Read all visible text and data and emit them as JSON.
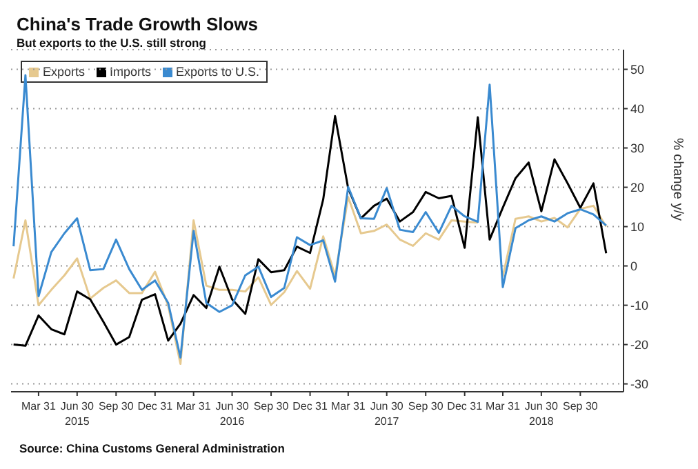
{
  "chart_data": {
    "type": "line",
    "title": "China's Trade Growth Slows",
    "subtitle": "But exports to the U.S. still strong",
    "ylabel": "% change y/y",
    "annotations": [
      "Source: China Customs General Administration"
    ],
    "x": [
      "2015-01-31",
      "2015-02-28",
      "2015-03-31",
      "2015-04-30",
      "2015-05-31",
      "2015-06-30",
      "2015-07-31",
      "2015-08-31",
      "2015-09-30",
      "2015-10-31",
      "2015-11-30",
      "2015-12-31",
      "2016-01-31",
      "2016-02-29",
      "2016-03-31",
      "2016-04-30",
      "2016-05-31",
      "2016-06-30",
      "2016-07-31",
      "2016-08-31",
      "2016-09-30",
      "2016-10-31",
      "2016-11-30",
      "2016-12-31",
      "2017-01-31",
      "2017-02-28",
      "2017-03-31",
      "2017-04-30",
      "2017-05-31",
      "2017-06-30",
      "2017-07-31",
      "2017-08-31",
      "2017-09-30",
      "2017-10-31",
      "2017-11-30",
      "2017-12-31",
      "2018-01-31",
      "2018-02-28",
      "2018-03-31",
      "2018-04-30",
      "2018-05-31",
      "2018-06-30",
      "2018-07-31",
      "2018-08-31",
      "2018-09-30",
      "2018-10-31",
      "2018-11-30"
    ],
    "series": [
      {
        "name": "Exports",
        "color": "#e6c98f",
        "values": [
          -3.2,
          11.6,
          -10,
          -6.1,
          -2.4,
          1.9,
          -8.3,
          -5.6,
          -3.7,
          -6.9,
          -6.9,
          -1.5,
          -10.1,
          -24.9,
          11.6,
          -5,
          -6.1,
          -6.1,
          -6.5,
          -2.9,
          -9.9,
          -6.7,
          -1.3,
          -5.8,
          7.5,
          -2.5,
          17.5,
          8.3,
          8.9,
          10.5,
          6.7,
          5.1,
          8.3,
          6.7,
          11.6,
          11.3,
          11,
          null,
          -2.7,
          12,
          12.6,
          11.3,
          12.2,
          9.8,
          14.5,
          15.3,
          10
        ]
      },
      {
        "name": "Imports",
        "color": "#000000",
        "values": [
          -20,
          -20.3,
          -12.6,
          -16.1,
          -17.4,
          -6.5,
          -8.5,
          -14.2,
          -20,
          -18.1,
          -8.6,
          -7.2,
          -19,
          -14.7,
          -7.4,
          -10.7,
          -0.2,
          -8.5,
          -12.2,
          1.7,
          -1.6,
          -1.1,
          4.9,
          3.3,
          16.9,
          38.1,
          19.7,
          12.1,
          15.3,
          17.1,
          11.3,
          13.7,
          18.8,
          17.2,
          17.8,
          4.6,
          37.8,
          6.7,
          14.8,
          22.3,
          26.3,
          13.9,
          27.1,
          21,
          14.8,
          21,
          3.2
        ]
      },
      {
        "name": "Exports to U.S.",
        "color": "#3a8ad0",
        "values": [
          5,
          48.5,
          -7.7,
          3.5,
          8.3,
          12.1,
          -1.1,
          -0.8,
          6.7,
          -0.8,
          -6.1,
          -3.7,
          -9.4,
          -23.3,
          8.9,
          -9.4,
          -11.7,
          -10,
          -2.4,
          -0.2,
          -7.9,
          -5.6,
          7.3,
          5.3,
          6.5,
          -4,
          20.1,
          12.1,
          12,
          19.8,
          9.2,
          8.6,
          13.7,
          8.4,
          15.3,
          12.6,
          11.2,
          46.1,
          -5.4,
          9.6,
          11.6,
          12.6,
          11.3,
          13.4,
          14.4,
          13.1,
          10.3
        ]
      }
    ],
    "xlim": [
      "2015-01-25",
      "2019-01-10"
    ],
    "xticks": [
      {
        "value": "2015-03-31",
        "label": "Mar 31"
      },
      {
        "value": "2015-06-30",
        "label": "Jun 30\n2015"
      },
      {
        "value": "2015-09-30",
        "label": "Sep 30"
      },
      {
        "value": "2015-12-31",
        "label": "Dec 31"
      },
      {
        "value": "2016-03-31",
        "label": "Mar 31"
      },
      {
        "value": "2016-06-30",
        "label": "Jun 30\n2016"
      },
      {
        "value": "2016-09-30",
        "label": "Sep 30"
      },
      {
        "value": "2016-12-31",
        "label": "Dec 31"
      },
      {
        "value": "2017-03-31",
        "label": "Mar 31"
      },
      {
        "value": "2017-06-30",
        "label": "Jun 30\n2017"
      },
      {
        "value": "2017-09-30",
        "label": "Sep 30"
      },
      {
        "value": "2017-12-31",
        "label": "Dec 31"
      },
      {
        "value": "2018-03-31",
        "label": "Mar 31"
      },
      {
        "value": "2018-06-30",
        "label": "Jun 30\n2018"
      },
      {
        "value": "2018-09-30",
        "label": "Sep 30"
      }
    ],
    "ylim": [
      -32,
      55
    ],
    "yticks": [
      -30,
      -20,
      -10,
      0,
      10,
      20,
      30,
      40,
      50
    ],
    "grid": "y",
    "legend": "top left",
    "line_style": "solid",
    "marker": "none"
  }
}
